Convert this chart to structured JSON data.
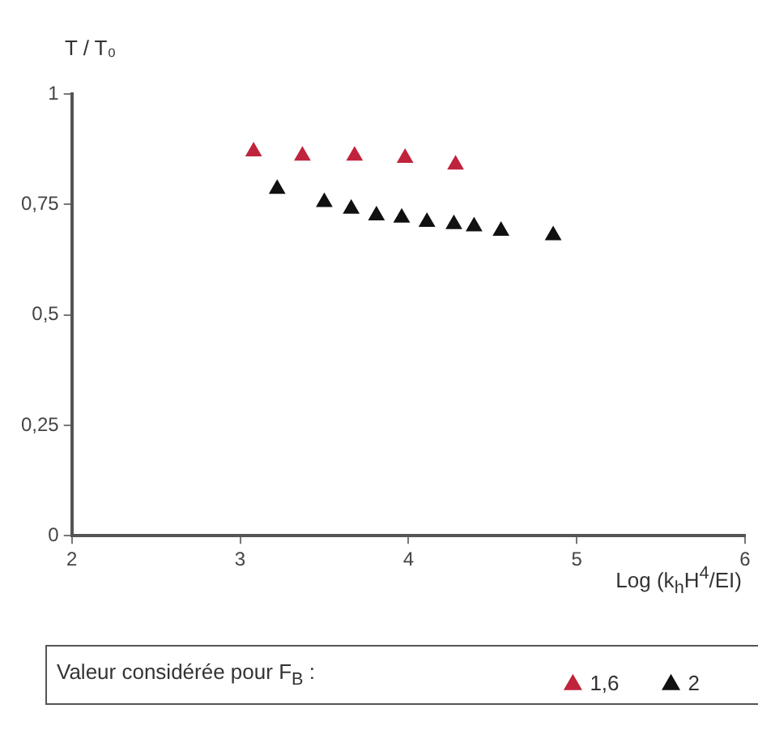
{
  "chart_data": {
    "type": "scatter",
    "ylabel": "T / T₀",
    "xlabel": "Log (k$_{h}$H$^{4}$/EI)",
    "legend_title": "Valeur considérée pour F$_{B}$ :",
    "xlim": [
      2,
      6
    ],
    "xticks": [
      2,
      3,
      4,
      5,
      6
    ],
    "ylim": [
      0,
      1
    ],
    "yticks": [
      0,
      {
        "value": 0.25,
        "label": "0,25"
      },
      {
        "value": 0.5,
        "label": "0,5"
      },
      {
        "value": 0.75,
        "label": "0,75"
      },
      1
    ],
    "marker": "triangle",
    "legend": "bottom",
    "series": [
      {
        "name": "1,6",
        "color": "#c0243c",
        "x": [
          3.08,
          3.37,
          3.68,
          3.98,
          4.28
        ],
        "values": [
          0.87,
          0.86,
          0.86,
          0.855,
          0.84
        ]
      },
      {
        "name": "2",
        "color": "#111111",
        "x": [
          3.22,
          3.5,
          3.66,
          3.81,
          3.96,
          4.11,
          4.27,
          4.39,
          4.55,
          4.86
        ],
        "values": [
          0.785,
          0.755,
          0.74,
          0.725,
          0.72,
          0.71,
          0.705,
          0.7,
          0.69,
          0.68
        ]
      }
    ]
  }
}
